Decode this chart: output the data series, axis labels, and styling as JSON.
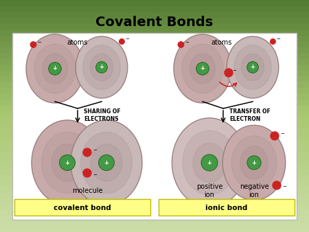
{
  "title": "Covalent Bonds",
  "title_fontsize": 14,
  "title_fontweight": "bold",
  "bg_color_top": "#d8e8c0",
  "bg_color_mid": "#a8c870",
  "bg_color_bot": "#507830",
  "panel_bg": "#ffffff",
  "atom_fill": "#c8aaaa",
  "atom_edge": "#9a8080",
  "nucleus_fill": "#449944",
  "nucleus_edge": "#226622",
  "electron_color": "#cc2222",
  "text_color": "#000000",
  "yellow_fill": "#ffff88",
  "yellow_edge": "#cccc00",
  "label_atoms_left": "atoms",
  "label_atoms_right": "atoms",
  "label_sharing": "SHARING OF\nELECTRONS",
  "label_transfer": "TRANSFER OF\nELECTRON",
  "label_molecule": "molecule",
  "label_positive": "positive\nion",
  "label_negative": "negative\nion",
  "label_covalent": "covalent bond",
  "label_ionic": "ionic bond"
}
